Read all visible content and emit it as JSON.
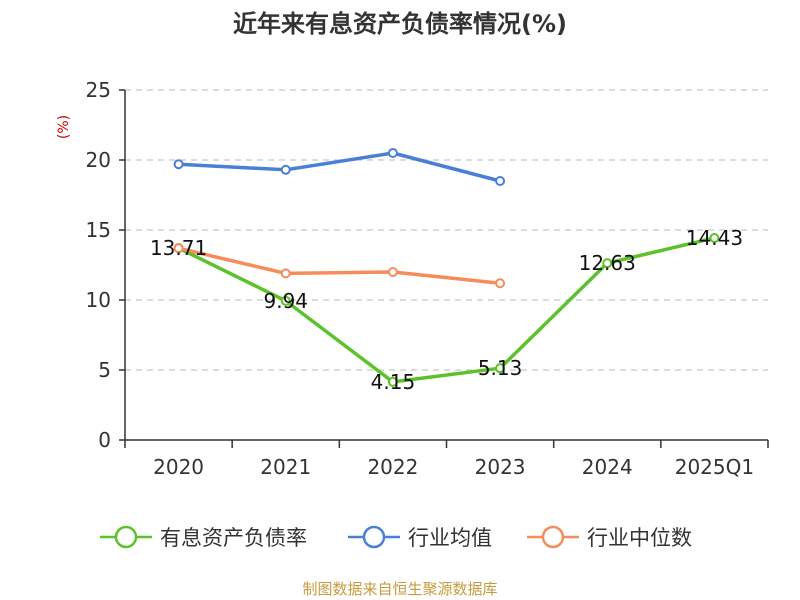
{
  "colors": {
    "series_primary": "#5cc22b",
    "series_avg": "#4a7fd8",
    "series_median": "#f58c5a",
    "ylabel": "#cc0000",
    "source": "#c89a3c",
    "grid": "#c8c8c8",
    "axis": "#333333"
  },
  "footer": {
    "source": "制图数据来自恒生聚源数据库"
  },
  "chart_data": {
    "type": "line",
    "title": "近年来有息资产负债率情况(%)",
    "xlabel": "",
    "ylabel": "(%)",
    "categories": [
      "2020",
      "2021",
      "2022",
      "2023",
      "2024",
      "2025Q1"
    ],
    "ylim": [
      0,
      25
    ],
    "yticks": [
      0,
      5,
      10,
      15,
      20,
      25
    ],
    "grid": true,
    "legend_position": "bottom",
    "series": [
      {
        "name": "有息资产负债率",
        "values": [
          13.71,
          9.94,
          4.15,
          5.13,
          12.63,
          14.43
        ],
        "labels": [
          "13.71",
          "9.94",
          "4.15",
          "5.13",
          "12.63",
          "14.43"
        ],
        "color_key": "series_primary"
      },
      {
        "name": "行业均值",
        "values": [
          19.7,
          19.3,
          20.5,
          18.5,
          null,
          null
        ],
        "color_key": "series_avg"
      },
      {
        "name": "行业中位数",
        "values": [
          13.7,
          11.9,
          12.0,
          11.2,
          null,
          null
        ],
        "color_key": "series_median"
      }
    ]
  }
}
